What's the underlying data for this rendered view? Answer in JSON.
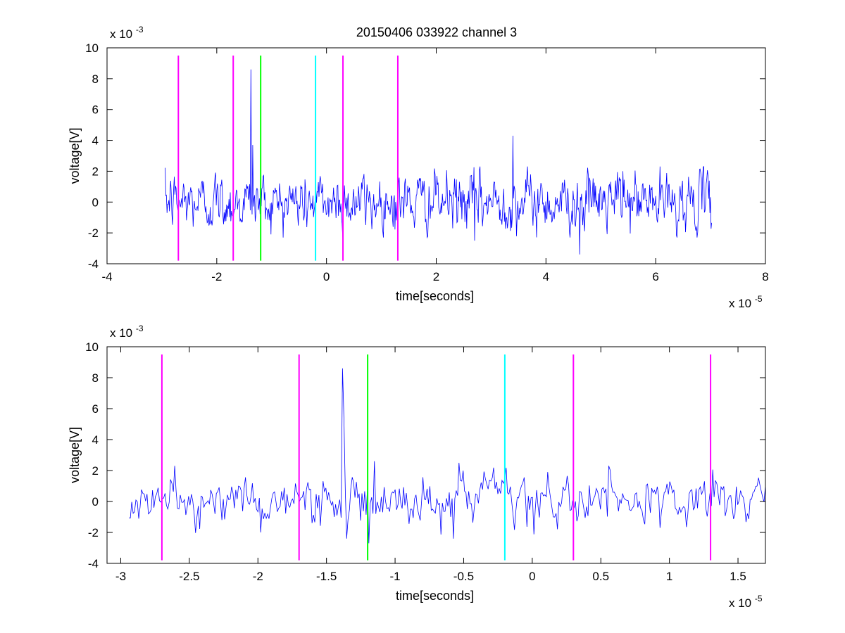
{
  "figure_title": "20150406 033922 channel 3",
  "chart_data": [
    {
      "type": "line",
      "title": "20150406 033922 channel 3",
      "xlabel": "time[seconds]",
      "ylabel": "voltage[V]",
      "x_multiplier_label": "x 10",
      "x_multiplier_exp": "-5",
      "y_multiplier_label": "x 10",
      "y_multiplier_exp": "-3",
      "xlim": [
        -4,
        8
      ],
      "ylim": [
        -4,
        10
      ],
      "xticks": [
        -4,
        -2,
        0,
        2,
        4,
        6,
        8
      ],
      "xtick_labels": [
        "-4",
        "-2",
        "0",
        "2",
        "4",
        "6",
        "8"
      ],
      "yticks": [
        -4,
        -2,
        0,
        2,
        4,
        6,
        8,
        10
      ],
      "ytick_labels": [
        "-4",
        "-2",
        "0",
        "2",
        "4",
        "6",
        "8",
        "10"
      ],
      "grid": false,
      "signal": {
        "color": "#0000ff",
        "x_range": [
          -2.94,
          7.02
        ],
        "points": 900,
        "noise_std": 0.8,
        "spikes": [
          {
            "x": -1.38,
            "y": 8.6
          },
          {
            "x": -1.35,
            "y": 3.7
          },
          {
            "x": -1.2,
            "y": 2.5
          },
          {
            "x": 3.4,
            "y": 4.3
          },
          {
            "x": 4.62,
            "y": -3.4
          },
          {
            "x": 2.7,
            "y": -2.5
          },
          {
            "x": 5.4,
            "y": 2.0
          }
        ]
      },
      "markers": [
        {
          "x": -2.7,
          "color": "#ff00ff"
        },
        {
          "x": -1.7,
          "color": "#ff00ff"
        },
        {
          "x": -1.2,
          "color": "#00ff00"
        },
        {
          "x": -0.2,
          "color": "#00ffff"
        },
        {
          "x": 0.3,
          "color": "#ff00ff"
        },
        {
          "x": 1.3,
          "color": "#ff00ff"
        }
      ],
      "marker_y_range": [
        -3.8,
        9.5
      ]
    },
    {
      "type": "line",
      "title": "",
      "xlabel": "time[seconds]",
      "ylabel": "voltage[V]",
      "x_multiplier_label": "x 10",
      "x_multiplier_exp": "-5",
      "y_multiplier_label": "x 10",
      "y_multiplier_exp": "-3",
      "xlim": [
        -3.1,
        1.7
      ],
      "ylim": [
        -4,
        10
      ],
      "xticks": [
        -3,
        -2.5,
        -2,
        -1.5,
        -1,
        -0.5,
        0,
        0.5,
        1,
        1.5
      ],
      "xtick_labels": [
        "-3",
        "-2.5",
        "-2",
        "-1.5",
        "-1",
        "-0.5",
        "0",
        "0.5",
        "1",
        "1.5"
      ],
      "yticks": [
        -4,
        -2,
        0,
        2,
        4,
        6,
        8,
        10
      ],
      "ytick_labels": [
        "-4",
        "-2",
        "0",
        "2",
        "4",
        "6",
        "8",
        "10"
      ],
      "grid": false,
      "signal": {
        "color": "#0000ff",
        "x_range": [
          -2.94,
          1.7
        ],
        "points": 460,
        "noise_std": 0.7,
        "spikes": [
          {
            "x": -1.38,
            "y": 8.6
          },
          {
            "x": -1.37,
            "y": 5.4
          },
          {
            "x": -1.35,
            "y": -2.4
          },
          {
            "x": -1.19,
            "y": -2.7
          },
          {
            "x": -1.15,
            "y": 2.6
          },
          {
            "x": -0.53,
            "y": 2.5
          },
          {
            "x": -0.57,
            "y": -2.4
          },
          {
            "x": -1.98,
            "y": -2.0
          }
        ]
      },
      "markers": [
        {
          "x": -2.7,
          "color": "#ff00ff"
        },
        {
          "x": -1.7,
          "color": "#ff00ff"
        },
        {
          "x": -1.2,
          "color": "#00ff00"
        },
        {
          "x": -0.2,
          "color": "#00ffff"
        },
        {
          "x": 0.3,
          "color": "#ff00ff"
        },
        {
          "x": 1.3,
          "color": "#ff00ff"
        }
      ],
      "marker_y_range": [
        -3.8,
        9.5
      ]
    }
  ]
}
